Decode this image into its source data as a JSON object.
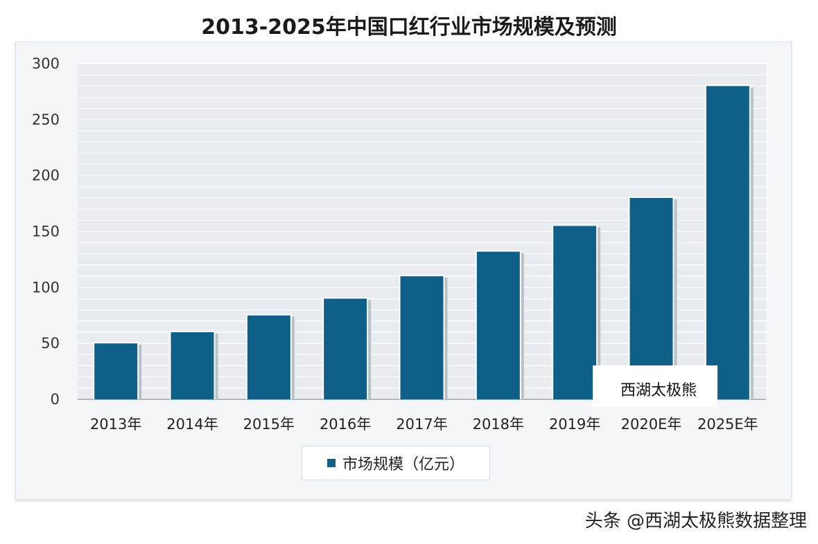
{
  "title": "2013-2025年中国口红行业市场规模及预测",
  "chart_data": {
    "type": "bar",
    "title": "2013-2025年中国口红行业市场规模及预测",
    "categories": [
      "2013年",
      "2014年",
      "2015年",
      "2016年",
      "2017年",
      "2018年",
      "2019年",
      "2020E年",
      "2025E年"
    ],
    "series": [
      {
        "name": "市场规模（亿元）",
        "values": [
          50,
          60,
          75,
          90,
          110,
          132,
          155,
          180,
          280
        ]
      }
    ],
    "y_ticks": [
      0,
      50,
      100,
      150,
      200,
      250,
      300
    ],
    "ylim": [
      0,
      300
    ],
    "grid": true,
    "legend_position": "bottom-center",
    "bar_color": "#0e6089"
  },
  "legend": {
    "label": "市场规模（亿元）"
  },
  "watermark": {
    "label": "西湖太极熊"
  },
  "footer": {
    "credit": "头条 @西湖太极熊数据整理"
  }
}
